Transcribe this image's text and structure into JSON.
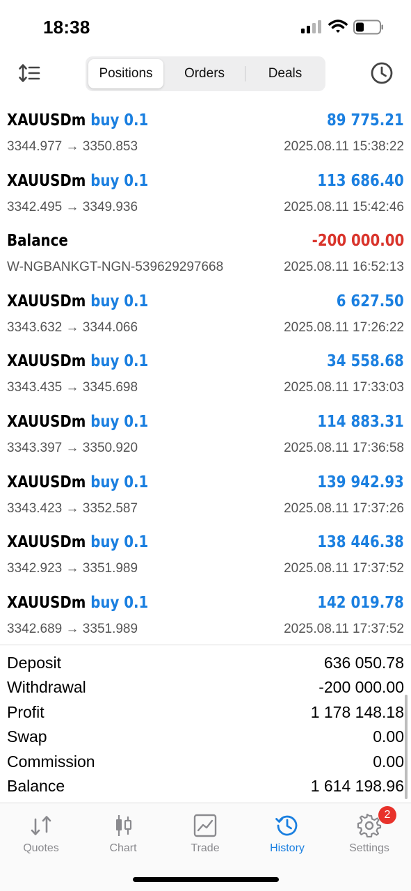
{
  "status_bar": {
    "time": "18:38"
  },
  "header": {
    "tabs": [
      {
        "label": "Positions",
        "active": true
      },
      {
        "label": "Orders",
        "active": false
      },
      {
        "label": "Deals",
        "active": false
      }
    ],
    "left_icon": "sort-icon",
    "right_icon": "history-clock-icon"
  },
  "colors": {
    "accent": "#1a7fe0",
    "negative": "#d9342b",
    "muted": "#8a8a8e"
  },
  "rows": [
    {
      "symbol": "XAUUSDm",
      "direction": "buy 0.1",
      "prices": "3344.977 → 3350.853",
      "profit": "89 775.21",
      "time": "2025.08.11 15:38:22"
    },
    {
      "symbol": "XAUUSDm",
      "direction": "buy 0.1",
      "prices": "3342.495 → 3349.936",
      "profit": "113 686.40",
      "time": "2025.08.11 15:42:46"
    },
    {
      "symbol": "Balance",
      "direction": "",
      "prices": "W-NGBANKGT-NGN-539629297668",
      "profit": "-200 000.00",
      "time": "2025.08.11 16:52:13"
    },
    {
      "symbol": "XAUUSDm",
      "direction": "buy 0.1",
      "prices": "3343.632 → 3344.066",
      "profit": "6 627.50",
      "time": "2025.08.11 17:26:22"
    },
    {
      "symbol": "XAUUSDm",
      "direction": "buy 0.1",
      "prices": "3343.435 → 3345.698",
      "profit": "34 558.68",
      "time": "2025.08.11 17:33:03"
    },
    {
      "symbol": "XAUUSDm",
      "direction": "buy 0.1",
      "prices": "3343.397 → 3350.920",
      "profit": "114 883.31",
      "time": "2025.08.11 17:36:58"
    },
    {
      "symbol": "XAUUSDm",
      "direction": "buy 0.1",
      "prices": "3343.423 → 3352.587",
      "profit": "139 942.93",
      "time": "2025.08.11 17:37:26"
    },
    {
      "symbol": "XAUUSDm",
      "direction": "buy 0.1",
      "prices": "3342.923 → 3351.989",
      "profit": "138 446.38",
      "time": "2025.08.11 17:37:52"
    },
    {
      "symbol": "XAUUSDm",
      "direction": "buy 0.1",
      "prices": "3342.689 → 3351.989",
      "profit": "142 019.78",
      "time": "2025.08.11 17:37:52"
    }
  ],
  "summary": [
    {
      "label": "Deposit",
      "value": "636 050.78"
    },
    {
      "label": "Withdrawal",
      "value": "-200 000.00"
    },
    {
      "label": "Profit",
      "value": "1 178 148.18"
    },
    {
      "label": "Swap",
      "value": "0.00"
    },
    {
      "label": "Commission",
      "value": "0.00"
    },
    {
      "label": "Balance",
      "value": "1 614 198.96"
    }
  ],
  "tabbar": {
    "items": [
      {
        "label": "Quotes",
        "icon": "quotes-icon"
      },
      {
        "label": "Chart",
        "icon": "candlestick-chart-icon"
      },
      {
        "label": "Trade",
        "icon": "trade-chart-icon"
      },
      {
        "label": "History",
        "icon": "history-icon",
        "active": true
      },
      {
        "label": "Settings",
        "icon": "gear-icon",
        "badge": "2"
      }
    ]
  }
}
